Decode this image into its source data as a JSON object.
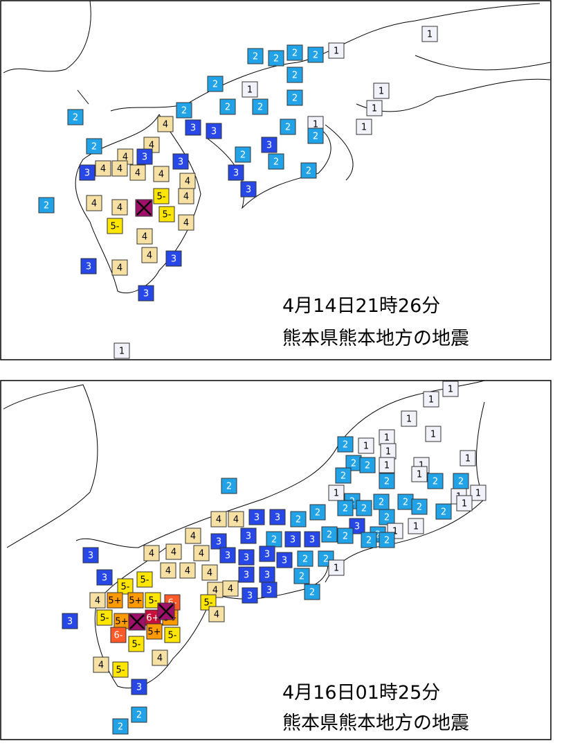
{
  "panels": [
    {
      "caption_date": "4月14日21時26分",
      "caption_place": "熊本県熊本地方の地震",
      "stations": [
        "1",
        "2",
        "2",
        "2",
        "2",
        "1",
        "2",
        "2",
        "1",
        "1",
        "2",
        "2",
        "2",
        "2",
        "1",
        "2",
        "4",
        "3",
        "3",
        "2",
        "1",
        "1",
        "2",
        "3",
        "4",
        "2",
        "4",
        "3",
        "3",
        "2",
        "4",
        "4",
        "4",
        "4",
        "2",
        "3",
        "3",
        "2",
        "4",
        "5-",
        "4",
        "3",
        "2",
        "4",
        "4",
        "5-",
        "4",
        "5-",
        "4",
        "4",
        "3",
        "3",
        "4",
        "3",
        "1"
      ]
    },
    {
      "caption_date": "4月16日01時25分",
      "caption_place": "熊本県熊本地方の地震",
      "stations": [
        "1",
        "1",
        "1",
        "1",
        "1",
        "2",
        "1",
        "1",
        "2",
        "2",
        "1",
        "1",
        "1",
        "2",
        "1",
        "2",
        "2",
        "2",
        "2",
        "1",
        "1",
        "1",
        "2",
        "2",
        "2",
        "2",
        "2",
        "1",
        "4",
        "4",
        "3",
        "3",
        "2",
        "2",
        "2",
        "2",
        "2",
        "3",
        "2",
        "1",
        "1",
        "3",
        "2",
        "3",
        "3",
        "2",
        "2",
        "2",
        "2",
        "3",
        "4",
        "4",
        "4",
        "4",
        "3",
        "3",
        "3",
        "3",
        "2",
        "2",
        "1",
        "3",
        "4",
        "4",
        "5-",
        "4",
        "3",
        "3",
        "2",
        "3",
        "5-",
        "4",
        "4",
        "3",
        "3",
        "2",
        "4",
        "5+",
        "5+",
        "5-",
        "6-",
        "5-",
        "4",
        "3",
        "5-",
        "5+",
        "6+",
        "5+",
        "5+",
        "5-",
        "6-",
        "5-",
        "4",
        "4",
        "5-",
        "3",
        "2",
        "2"
      ]
    }
  ]
}
